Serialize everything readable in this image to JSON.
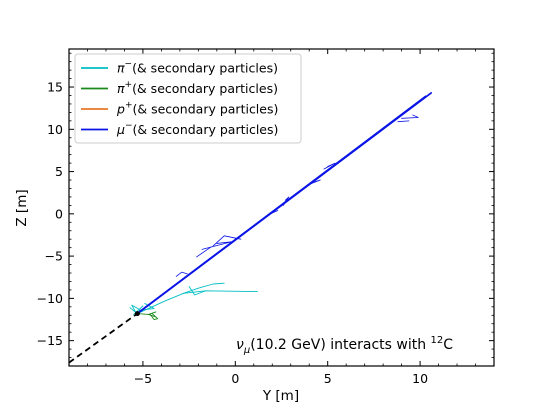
{
  "chart_data": {
    "type": "line",
    "xlabel": "Y [m]",
    "ylabel": "Z [m]",
    "xlim": [
      -9,
      14
    ],
    "ylim": [
      -18,
      19.5
    ],
    "xticks": [
      -5,
      0,
      5,
      10
    ],
    "yticks": [
      -15,
      -10,
      -5,
      0,
      5,
      10,
      15
    ],
    "grid": false,
    "legend_position": "upper-left",
    "annotation": {
      "prefix": "ν",
      "sub": "μ",
      "mid": "(10.2 GeV) interacts with ",
      "sup": "12",
      "suffix": "C"
    },
    "incoming_track": {
      "style": "dashed",
      "color": "#000000",
      "x": [
        -9,
        -5.3
      ],
      "y": [
        -17.6,
        -11.8
      ]
    },
    "vertex": {
      "x": -5.3,
      "y": -11.8
    },
    "series": [
      {
        "name": "π⁻(& secondary particles)",
        "legend_main": "π",
        "legend_sup": "−",
        "legend_rest": "(& secondary particles)",
        "color": "#00bfc4",
        "tracks": [
          {
            "x": [
              -5.3,
              -3.8,
              -2.8,
              -1.6,
              1.2
            ],
            "y": [
              -11.8,
              -10.3,
              -9.4,
              -9.1,
              -9.2
            ]
          },
          {
            "x": [
              -2.8,
              -2.0,
              -1.2,
              -0.6
            ],
            "y": [
              -9.4,
              -8.8,
              -8.3,
              -8.2
            ]
          },
          {
            "x": [
              -1.6,
              -2.2,
              -2.5
            ],
            "y": [
              -9.1,
              -9.6,
              -8.6
            ]
          },
          {
            "x": [
              -5.4,
              -5.6,
              -5.2,
              -5.0,
              -5.5
            ],
            "y": [
              -11.6,
              -10.8,
              -11.3,
              -10.9,
              -11.9
            ]
          },
          {
            "x": [
              -5.2,
              -4.4,
              -4.9
            ],
            "y": [
              -11.4,
              -11.2,
              -10.6
            ]
          },
          {
            "x": [
              -5.3,
              -5.7
            ],
            "y": [
              -11.8,
              -11.1
            ]
          }
        ]
      },
      {
        "name": "π⁺(& secondary particles)",
        "legend_main": "π",
        "legend_sup": "+",
        "legend_rest": "(& secondary particles)",
        "color": "#1a8a1a",
        "tracks": [
          {
            "x": [
              -5.3,
              -4.7,
              -4.3
            ],
            "y": [
              -11.8,
              -11.9,
              -12.2
            ]
          },
          {
            "x": [
              -4.5,
              -4.2,
              -4.4,
              -4.6
            ],
            "y": [
              -11.8,
              -12.4,
              -12.5,
              -11.9
            ]
          },
          {
            "x": [
              -4.7,
              -4.3
            ],
            "y": [
              -11.9,
              -11.6
            ]
          }
        ]
      },
      {
        "name": "p⁺(& secondary particles)",
        "legend_main": "p",
        "legend_sup": "+",
        "legend_rest": "(& secondary particles)",
        "color": "#e8772a",
        "tracks": [
          {
            "x": [
              -5.3,
              -5.1
            ],
            "y": [
              -11.8,
              -11.5
            ]
          }
        ]
      },
      {
        "name": "μ⁻(& secondary particles)",
        "legend_main": "μ",
        "legend_sup": "−",
        "legend_rest": "(& secondary particles)",
        "color": "#0a14e6",
        "tracks": [
          {
            "x": [
              -5.3,
              10.6
            ],
            "y": [
              -11.8,
              14.3
            ]
          },
          {
            "x": [
              -5.2,
              10.3
            ],
            "y": [
              -11.6,
              13.9
            ]
          },
          {
            "x": [
              -1.2,
              -0.6,
              0.3
            ],
            "y": [
              -3.8,
              -2.6,
              -3.0
            ]
          },
          {
            "x": [
              -1.0,
              -0.2,
              -1.8
            ],
            "y": [
              -3.5,
              -3.3,
              -4.2
            ]
          },
          {
            "x": [
              -1.3,
              -2.1
            ],
            "y": [
              -3.9,
              -5.1
            ]
          },
          {
            "x": [
              -3.2,
              -2.9,
              -2.6
            ],
            "y": [
              -7.4,
              -6.9,
              -7.1
            ]
          },
          {
            "x": [
              1.8,
              2.3,
              2.1
            ],
            "y": [
              -0.1,
              0.4,
              0.2
            ]
          },
          {
            "x": [
              2.6,
              2.9,
              2.7
            ],
            "y": [
              1.0,
              2.0,
              1.6
            ]
          },
          {
            "x": [
              3.9,
              4.6,
              4.3
            ],
            "y": [
              3.4,
              4.0,
              3.8
            ]
          },
          {
            "x": [
              4.8,
              5.4,
              5.0
            ],
            "y": [
              5.3,
              6.0,
              5.6
            ]
          },
          {
            "x": [
              9.0,
              9.9,
              9.6
            ],
            "y": [
              11.3,
              11.4,
              11.7
            ]
          },
          {
            "x": [
              8.8,
              9.4
            ],
            "y": [
              10.9,
              11.0
            ]
          }
        ]
      }
    ]
  }
}
